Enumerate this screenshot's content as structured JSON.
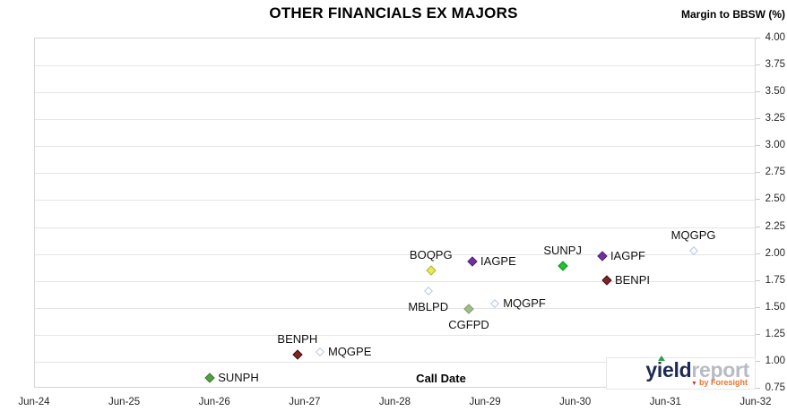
{
  "title": "OTHER FINANCIALS EX MAJORS",
  "y_axis_title": "Margin to BBSW (%)",
  "x_axis_label": "Call Date",
  "brand": {
    "part1": "yield",
    "part2": "report",
    "tagline": "by Foresight",
    "tagline_color": "#e87530",
    "part1_color": "#1e2a52",
    "part2_color": "#b7bbc2"
  },
  "colors": {
    "gridline": "#e5e5e5",
    "plot_border": "#d7d7d7",
    "marker_colors": {
      "green": {
        "fill": "#53a043",
        "border": "#3a7a2e"
      },
      "bright_green": {
        "fill": "#22c32f",
        "border": "#169224"
      },
      "dark_red": {
        "fill": "#7e2626",
        "border": "#451212"
      },
      "purple": {
        "fill": "#7030a0",
        "border": "#4f2175"
      },
      "yellow": {
        "fill": "#e6ec49",
        "border": "#a9b13f"
      },
      "sage": {
        "fill": "#a2bd8b",
        "border": "#7e9c66"
      },
      "light_blue": {
        "fill": "#ffffff",
        "border": "#b5c7e4"
      }
    }
  },
  "chart_data": {
    "type": "scatter",
    "title": "OTHER FINANCIALS EX MAJORS",
    "xlabel": "Call Date",
    "ylabel": "Margin to BBSW (%)",
    "x_tick_labels": [
      "Jun-24",
      "Jun-25",
      "Jun-26",
      "Jun-27",
      "Jun-28",
      "Jun-29",
      "Jun-30",
      "Jun-31",
      "Jun-32"
    ],
    "x_range_years_after_jun24": [
      0,
      8
    ],
    "ylim": [
      0.75,
      4.0
    ],
    "y_tick_step": 0.25,
    "grid": "horizontal-only",
    "legend": "none",
    "y_labels_side": "right",
    "points": [
      {
        "label": "SUNPH",
        "x_years": 1.95,
        "approx_call_date": "May-26",
        "margin_pct": 0.84,
        "marker": "filled",
        "color_key": "green",
        "label_pos": "right"
      },
      {
        "label": "BENPH",
        "x_years": 2.92,
        "approx_call_date": "May-27",
        "margin_pct": 1.06,
        "marker": "filled",
        "color_key": "dark_red",
        "label_pos": "above"
      },
      {
        "label": "MQGPE",
        "x_years": 3.17,
        "approx_call_date": "Aug-27",
        "margin_pct": 1.08,
        "marker": "hollow",
        "color_key": "light_blue",
        "label_pos": "right"
      },
      {
        "label": "MBLPD",
        "x_years": 4.37,
        "approx_call_date": "Oct-28",
        "margin_pct": 1.65,
        "marker": "hollow",
        "color_key": "light_blue",
        "label_pos": "below"
      },
      {
        "label": "BOQPG",
        "x_years": 4.4,
        "approx_call_date": "Nov-28",
        "margin_pct": 1.84,
        "marker": "filled",
        "color_key": "yellow",
        "label_pos": "above"
      },
      {
        "label": "CGFPD",
        "x_years": 4.82,
        "approx_call_date": "Apr-29",
        "margin_pct": 1.48,
        "marker": "filled",
        "color_key": "sage",
        "label_pos": "below"
      },
      {
        "label": "IAGPE",
        "x_years": 4.86,
        "approx_call_date": "Apr-29",
        "margin_pct": 1.92,
        "marker": "filled",
        "color_key": "purple",
        "label_pos": "right"
      },
      {
        "label": "MQGPF",
        "x_years": 5.11,
        "approx_call_date": "Jul-29",
        "margin_pct": 1.53,
        "marker": "hollow",
        "color_key": "light_blue",
        "label_pos": "right"
      },
      {
        "label": "SUNPJ",
        "x_years": 5.86,
        "approx_call_date": "Apr-30",
        "margin_pct": 1.88,
        "marker": "filled",
        "color_key": "bright_green",
        "label_pos": "above"
      },
      {
        "label": "IAGPF",
        "x_years": 6.3,
        "approx_call_date": "Sep-30",
        "margin_pct": 1.97,
        "marker": "filled",
        "color_key": "purple",
        "label_pos": "right"
      },
      {
        "label": "BENPI",
        "x_years": 6.35,
        "approx_call_date": "Oct-30",
        "margin_pct": 1.75,
        "marker": "filled",
        "color_key": "dark_red",
        "label_pos": "right"
      },
      {
        "label": "MQGPG",
        "x_years": 7.31,
        "approx_call_date": "Sep-31",
        "margin_pct": 2.02,
        "marker": "hollow",
        "color_key": "light_blue",
        "label_pos": "above"
      }
    ]
  }
}
